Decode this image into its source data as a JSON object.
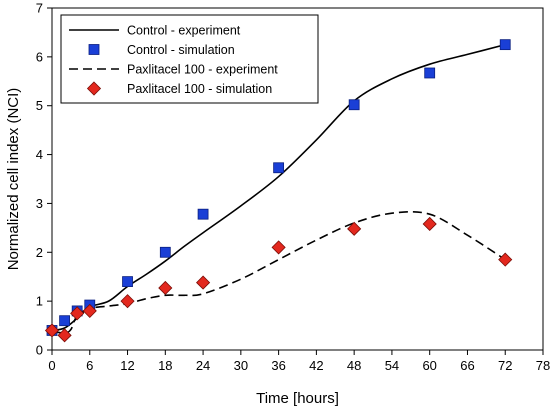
{
  "chart_data": {
    "type": "line",
    "xlabel": "Time [hours]",
    "ylabel": "Normalized cell index (NCI)",
    "xlim": [
      0,
      78
    ],
    "ylim": [
      0,
      7
    ],
    "xticks": [
      0,
      6,
      12,
      18,
      24,
      30,
      36,
      42,
      48,
      54,
      60,
      66,
      72,
      78
    ],
    "yticks": [
      0,
      1,
      2,
      3,
      4,
      5,
      6,
      7
    ],
    "grid": false,
    "legend_position": "top-left",
    "series": [
      {
        "name": "Control - experiment",
        "kind": "line",
        "style": "solid",
        "color": "#000000",
        "x": [
          0,
          2,
          4,
          6,
          9,
          12,
          15,
          18,
          21,
          24,
          30,
          36,
          42,
          48,
          54,
          60,
          66,
          72
        ],
        "y": [
          0.4,
          0.45,
          0.65,
          0.88,
          1.0,
          1.3,
          1.55,
          1.82,
          2.12,
          2.4,
          2.95,
          3.55,
          4.3,
          5.1,
          5.55,
          5.85,
          6.05,
          6.25
        ]
      },
      {
        "name": "Control - simulation",
        "kind": "scatter",
        "marker": "square",
        "color": "#1a3fd6",
        "x": [
          0,
          2,
          4,
          6,
          12,
          18,
          24,
          36,
          48,
          60,
          72
        ],
        "y": [
          0.4,
          0.6,
          0.8,
          0.92,
          1.4,
          2.0,
          2.78,
          3.73,
          5.02,
          5.67,
          6.25
        ]
      },
      {
        "name": "Paxlitacel 100 - experiment",
        "kind": "line",
        "style": "dashed",
        "color": "#000000",
        "x": [
          0,
          2,
          3,
          4,
          6,
          9,
          12,
          15,
          18,
          21,
          24,
          30,
          36,
          42,
          48,
          54,
          60,
          66,
          72
        ],
        "y": [
          0.38,
          0.35,
          0.42,
          0.7,
          0.85,
          0.9,
          0.95,
          1.05,
          1.12,
          1.12,
          1.15,
          1.45,
          1.85,
          2.25,
          2.6,
          2.8,
          2.78,
          2.35,
          1.85
        ]
      },
      {
        "name": "Paxlitacel 100 - simulation",
        "kind": "scatter",
        "marker": "diamond",
        "color": "#e3281e",
        "x": [
          0,
          2,
          4,
          6,
          12,
          18,
          24,
          36,
          48,
          60,
          72
        ],
        "y": [
          0.4,
          0.3,
          0.75,
          0.8,
          1.0,
          1.27,
          1.38,
          2.1,
          2.48,
          2.58,
          1.85
        ]
      }
    ]
  }
}
